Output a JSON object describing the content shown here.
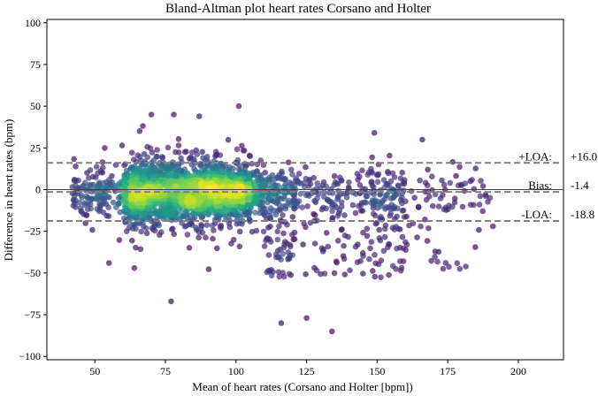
{
  "chart_data": {
    "type": "scatter",
    "title": "Bland-Altman plot heart rates Corsano and Holter",
    "xlabel": "Mean of heart rates (Corsano and Holter [bpm])",
    "ylabel": "Difference in heart rates (bpm)",
    "xlim": [
      33,
      216
    ],
    "ylim": [
      -102,
      102
    ],
    "xticks": [
      50,
      75,
      100,
      125,
      150,
      175,
      200
    ],
    "yticks": [
      -100,
      -75,
      -50,
      -25,
      0,
      25,
      50,
      75,
      100
    ],
    "grid": false,
    "colormap": "viridis (point density)",
    "reference_lines": [
      {
        "name": "+LOA",
        "label": "+LOA:",
        "value": 16.0,
        "value_text": "+16.0",
        "style": "dashed",
        "color": "#808080"
      },
      {
        "name": "Bias",
        "label": "Bias:",
        "value": -1.4,
        "value_text": "-1.4",
        "style": "dashed",
        "color": "#808080"
      },
      {
        "name": "-LOA",
        "label": "-LOA:",
        "value": -18.8,
        "value_text": "-18.8",
        "style": "dashed",
        "color": "#808080"
      }
    ],
    "zero_line": {
      "value": 0,
      "color": "#404040"
    },
    "notable_points": [
      {
        "x": 101,
        "y": 50
      },
      {
        "x": 87,
        "y": 44
      },
      {
        "x": 149,
        "y": 34
      },
      {
        "x": 166,
        "y": 30
      },
      {
        "x": 77,
        "y": -67
      },
      {
        "x": 134,
        "y": -85
      },
      {
        "x": 116,
        "y": -80
      },
      {
        "x": 125,
        "y": -77
      },
      {
        "x": 183,
        "y": 5
      },
      {
        "x": 191,
        "y": -22
      },
      {
        "x": 55,
        "y": -44
      },
      {
        "x": 64,
        "y": -47
      }
    ]
  }
}
